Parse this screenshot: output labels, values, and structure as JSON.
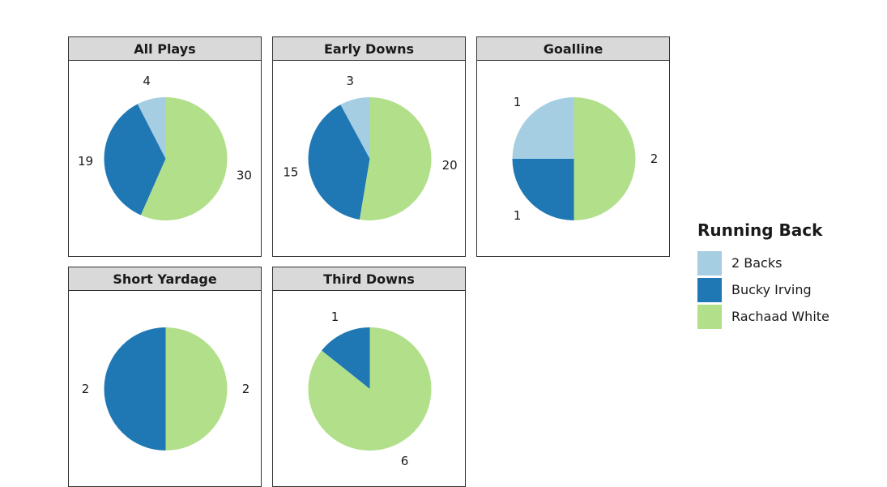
{
  "colors": {
    "2 Backs": "#a6cee3",
    "Bucky Irving": "#1f78b4",
    "Rachaad White": "#b2df8a"
  },
  "chart_data": {
    "type": "pie",
    "legend": {
      "title": "Running Back",
      "position": "right",
      "entries": [
        "2 Backs",
        "Bucky Irving",
        "Rachaad White"
      ]
    },
    "facets": [
      {
        "label": "All Plays",
        "slices": [
          {
            "name": "2 Backs",
            "value": 4
          },
          {
            "name": "Bucky Irving",
            "value": 19
          },
          {
            "name": "Rachaad White",
            "value": 30
          }
        ]
      },
      {
        "label": "Early Downs",
        "slices": [
          {
            "name": "2 Backs",
            "value": 3
          },
          {
            "name": "Bucky Irving",
            "value": 15
          },
          {
            "name": "Rachaad White",
            "value": 20
          }
        ]
      },
      {
        "label": "Goalline",
        "slices": [
          {
            "name": "2 Backs",
            "value": 1
          },
          {
            "name": "Bucky Irving",
            "value": 1
          },
          {
            "name": "Rachaad White",
            "value": 2
          }
        ]
      },
      {
        "label": "Short Yardage",
        "slices": [
          {
            "name": "2 Backs",
            "value": 0
          },
          {
            "name": "Bucky Irving",
            "value": 2
          },
          {
            "name": "Rachaad White",
            "value": 2
          }
        ]
      },
      {
        "label": "Third Downs",
        "slices": [
          {
            "name": "2 Backs",
            "value": 0
          },
          {
            "name": "Bucky Irving",
            "value": 1
          },
          {
            "name": "Rachaad White",
            "value": 6
          }
        ]
      }
    ]
  }
}
